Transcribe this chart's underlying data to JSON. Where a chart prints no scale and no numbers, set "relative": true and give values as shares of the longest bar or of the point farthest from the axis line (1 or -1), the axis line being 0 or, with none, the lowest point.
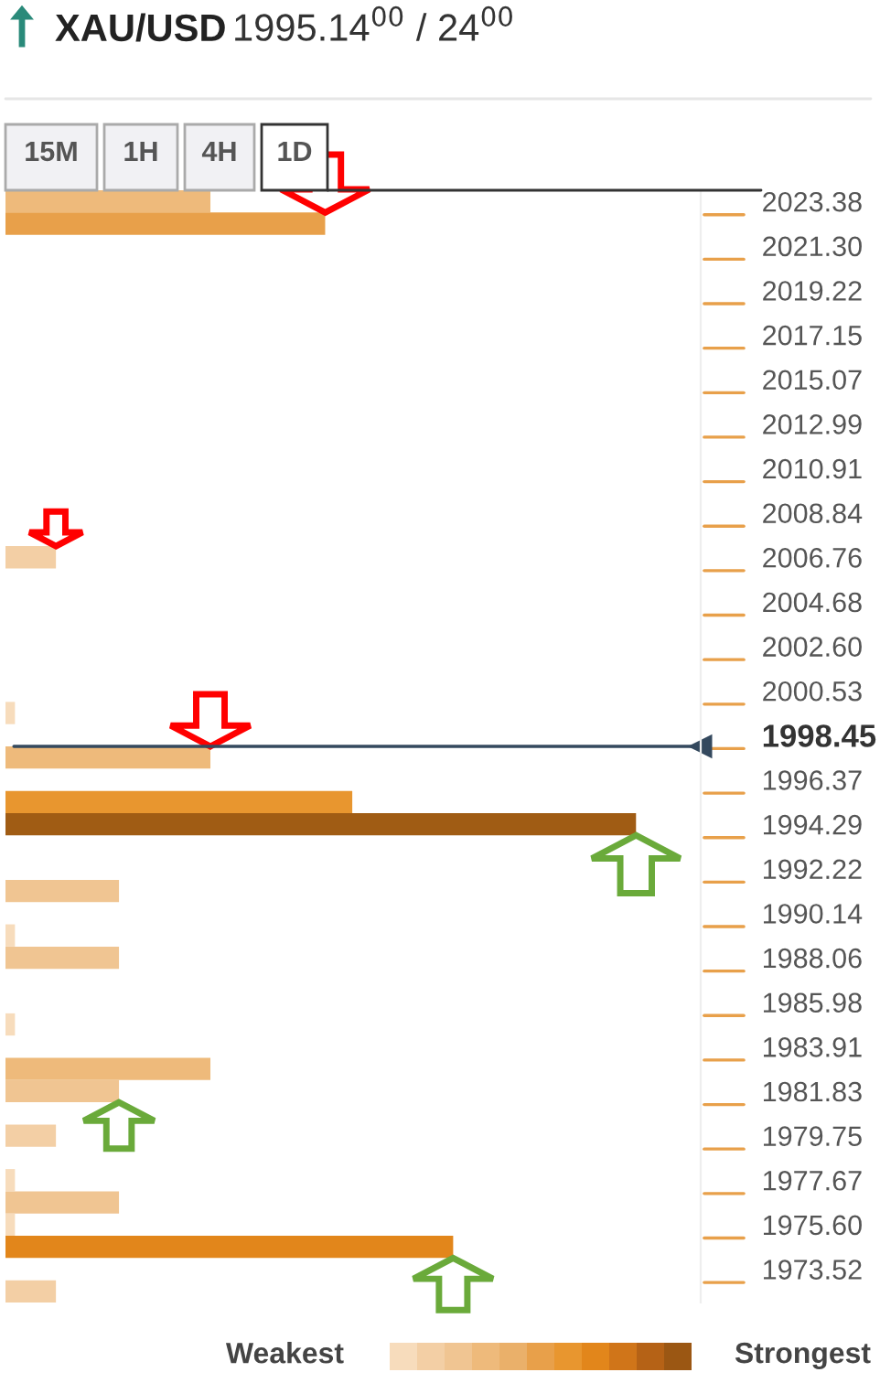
{
  "chart_data": {
    "type": "bar",
    "orientation": "horizontal",
    "relative": true,
    "title": "XAU/USD",
    "subtitle": "1995.14$^{00}$ / 24$^{00}$",
    "categories": [
      "2023.38",
      null,
      "2021.30",
      null,
      "2019.22",
      null,
      "2017.15",
      null,
      "2015.07",
      null,
      "2012.99",
      null,
      "2010.91",
      null,
      "2008.84",
      null,
      "2006.76",
      null,
      "2004.68",
      null,
      "2002.60",
      null,
      "2000.53",
      null,
      "1998.45",
      null,
      "1996.37",
      null,
      "1994.29",
      null,
      "1992.22",
      null,
      "1990.14",
      null,
      "1988.06",
      null,
      "1985.98",
      null,
      "1983.91",
      null,
      "1981.83",
      null,
      "1979.75",
      null,
      "1977.67",
      null,
      "1975.60",
      null,
      "1973.52",
      null
    ],
    "values": [
      0.325,
      0.507,
      null,
      null,
      null,
      null,
      null,
      null,
      null,
      null,
      null,
      null,
      null,
      null,
      null,
      null,
      0.08,
      null,
      null,
      null,
      null,
      null,
      null,
      0.015,
      null,
      0.325,
      null,
      0.55,
      1.0,
      null,
      null,
      0.18,
      null,
      0.015,
      0.18,
      null,
      null,
      0.015,
      null,
      0.325,
      0.18,
      null,
      0.08,
      null,
      0.015,
      0.18,
      0.015,
      0.71,
      null,
      0.08
    ],
    "colors": [
      "#eeba7b",
      "#e8a04a",
      null,
      null,
      null,
      null,
      null,
      null,
      null,
      null,
      null,
      null,
      null,
      null,
      null,
      null,
      "#f3cfa5",
      null,
      null,
      null,
      null,
      null,
      null,
      "#f7dcbc",
      null,
      "#eeba7b",
      null,
      "#e8962f",
      "#a05c14",
      null,
      null,
      "#f0c592",
      null,
      "#f7dcbc",
      "#f0c592",
      null,
      null,
      "#f7dcbc",
      null,
      "#eeba7b",
      "#f0c592",
      null,
      "#f3cfa5",
      null,
      "#f7dcbc",
      "#f0c592",
      "#f7dcbc",
      "#e2861b",
      null,
      "#f3cfa5"
    ],
    "ref_lines": [
      {
        "axis": "y",
        "value": "1998.45",
        "color": "#34495e"
      }
    ],
    "annotations": [
      "15M",
      "1H",
      "4H",
      "1D",
      "Weakest",
      "Strongest"
    ]
  }
}
